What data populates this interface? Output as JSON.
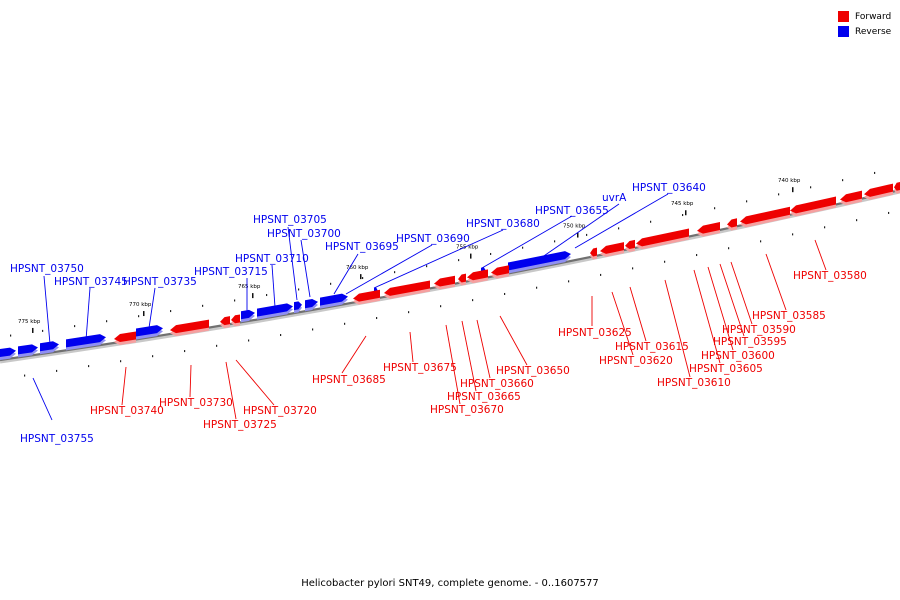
{
  "legend": {
    "forward_label": "Forward",
    "reverse_label": "Reverse",
    "forward_color": "#ee0000",
    "reverse_color": "#0000ee"
  },
  "caption": "Helicobacter pylori SNT49, complete genome. - 0..1607577",
  "ticks": [
    {
      "label": "775 kbp"
    },
    {
      "label": "770 kbp"
    },
    {
      "label": "765 kbp"
    },
    {
      "label": "760 kbp"
    },
    {
      "label": "755 kbp"
    },
    {
      "label": "750 kbp"
    },
    {
      "label": "745 kbp"
    },
    {
      "label": "740 kbp"
    }
  ],
  "genes_reverse": [
    {
      "label": "HPSNT_03755"
    },
    {
      "label": "HPSNT_03750"
    },
    {
      "label": "HPSNT_03745"
    },
    {
      "label": "HPSNT_03735"
    },
    {
      "label": "HPSNT_03715"
    },
    {
      "label": "HPSNT_03710"
    },
    {
      "label": "HPSNT_03705"
    },
    {
      "label": "HPSNT_03700"
    },
    {
      "label": "HPSNT_03695"
    },
    {
      "label": "HPSNT_03690"
    },
    {
      "label": "HPSNT_03680"
    },
    {
      "label": "HPSNT_03655"
    },
    {
      "label": "uvrA"
    },
    {
      "label": "HPSNT_03640"
    }
  ],
  "genes_forward": [
    {
      "label": "HPSNT_03740"
    },
    {
      "label": "HPSNT_03730"
    },
    {
      "label": "HPSNT_03725"
    },
    {
      "label": "HPSNT_03720"
    },
    {
      "label": "HPSNT_03685"
    },
    {
      "label": "HPSNT_03675"
    },
    {
      "label": "HPSNT_03670"
    },
    {
      "label": "HPSNT_03665"
    },
    {
      "label": "HPSNT_03660"
    },
    {
      "label": "HPSNT_03650"
    },
    {
      "label": "HPSNT_03625"
    },
    {
      "label": "HPSNT_03620"
    },
    {
      "label": "HPSNT_03615"
    },
    {
      "label": "HPSNT_03610"
    },
    {
      "label": "HPSNT_03605"
    },
    {
      "label": "HPSNT_03600"
    },
    {
      "label": "HPSNT_03595"
    },
    {
      "label": "HPSNT_03590"
    },
    {
      "label": "HPSNT_03585"
    },
    {
      "label": "HPSNT_03580"
    }
  ]
}
